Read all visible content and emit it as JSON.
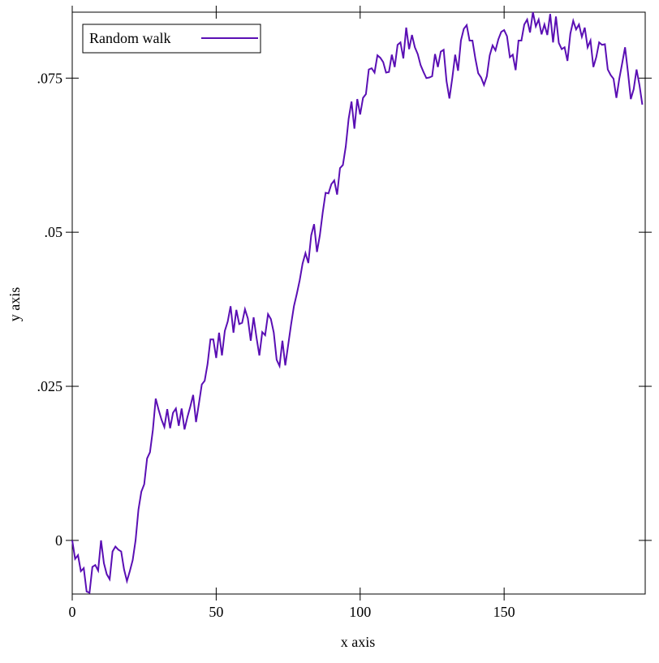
{
  "chart_data": {
    "type": "line",
    "xlabel": "x axis",
    "ylabel": "y axis",
    "legend": "top-left",
    "xlim": [
      0,
      199
    ],
    "xticks": [
      0,
      50,
      100,
      150
    ],
    "ylim": [
      -0.0087,
      0.0857
    ],
    "yticks": [
      0,
      {
        "value": 0.025,
        "label": ".025"
      },
      {
        "value": 0.05,
        "label": ".05"
      },
      {
        "value": 0.075,
        "label": ".075"
      }
    ],
    "x": [
      0,
      1,
      2,
      3,
      4,
      5,
      6,
      7,
      8,
      9,
      10,
      11,
      12,
      13,
      14,
      15,
      16,
      17,
      18,
      19,
      20,
      21,
      22,
      23,
      24,
      25,
      26,
      27,
      28,
      29,
      30,
      31,
      32,
      33,
      34,
      35,
      36,
      37,
      38,
      39,
      40,
      41,
      42,
      43,
      44,
      45,
      46,
      47,
      48,
      49,
      50,
      51,
      52,
      53,
      54,
      55,
      56,
      57,
      58,
      59,
      60,
      61,
      62,
      63,
      64,
      65,
      66,
      67,
      68,
      69,
      70,
      71,
      72,
      73,
      74,
      75,
      76,
      77,
      78,
      79,
      80,
      81,
      82,
      83,
      84,
      85,
      86,
      87,
      88,
      89,
      90,
      91,
      92,
      93,
      94,
      95,
      96,
      97,
      98,
      99,
      100,
      101,
      102,
      103,
      104,
      105,
      106,
      107,
      108,
      109,
      110,
      111,
      112,
      113,
      114,
      115,
      116,
      117,
      118,
      119,
      120,
      121,
      122,
      123,
      124,
      125,
      126,
      127,
      128,
      129,
      130,
      131,
      132,
      133,
      134,
      135,
      136,
      137,
      138,
      139,
      140,
      141,
      142,
      143,
      144,
      145,
      146,
      147,
      148,
      149,
      150,
      151,
      152,
      153,
      154,
      155,
      156,
      157,
      158,
      159,
      160,
      161,
      162,
      163,
      164,
      165,
      166,
      167,
      168,
      169,
      170,
      171,
      172,
      173,
      174,
      175,
      176,
      177,
      178,
      179,
      180,
      181,
      182,
      183,
      184,
      185,
      186,
      187,
      188,
      189,
      190,
      191,
      192,
      193,
      194,
      195,
      196,
      197,
      198
    ],
    "series": [
      {
        "name": "Random walk",
        "color": "#5a0fb4",
        "values": [
          0,
          -0.003,
          -0.0024,
          -0.005,
          -0.0045,
          -0.0083,
          -0.0085,
          -0.0043,
          -0.004,
          -0.0049,
          0,
          -0.0037,
          -0.0055,
          -0.0063,
          -0.0018,
          -0.001,
          -0.0015,
          -0.0018,
          -0.0047,
          -0.0066,
          -0.005,
          -0.0032,
          0,
          0.005,
          0.0079,
          0.0091,
          0.0133,
          0.0143,
          0.0179,
          0.023,
          0.0212,
          0.0196,
          0.0184,
          0.0213,
          0.0182,
          0.0207,
          0.0214,
          0.0186,
          0.0214,
          0.018,
          0.02,
          0.0217,
          0.0236,
          0.0192,
          0.0222,
          0.0253,
          0.0259,
          0.0286,
          0.0326,
          0.0326,
          0.0296,
          0.0337,
          0.03,
          0.034,
          0.0355,
          0.038,
          0.0337,
          0.0374,
          0.0351,
          0.0353,
          0.0375,
          0.036,
          0.0324,
          0.0362,
          0.0329,
          0.03,
          0.0338,
          0.0333,
          0.0367,
          0.0359,
          0.0337,
          0.0293,
          0.0283,
          0.0324,
          0.0284,
          0.0317,
          0.035,
          0.038,
          0.04,
          0.0422,
          0.0449,
          0.0466,
          0.045,
          0.0495,
          0.0513,
          0.0468,
          0.0495,
          0.0532,
          0.0564,
          0.0563,
          0.0578,
          0.0584,
          0.0561,
          0.0604,
          0.0609,
          0.0639,
          0.0684,
          0.0712,
          0.0668,
          0.0716,
          0.0691,
          0.0718,
          0.0724,
          0.0764,
          0.0766,
          0.0759,
          0.0787,
          0.0783,
          0.0776,
          0.0759,
          0.076,
          0.0788,
          0.0768,
          0.0804,
          0.0808,
          0.0782,
          0.0832,
          0.0797,
          0.082,
          0.08,
          0.0789,
          0.0771,
          0.076,
          0.075,
          0.0751,
          0.0753,
          0.0789,
          0.0768,
          0.0793,
          0.0796,
          0.0745,
          0.0717,
          0.075,
          0.0788,
          0.0762,
          0.0811,
          0.083,
          0.0836,
          0.0811,
          0.0811,
          0.0782,
          0.0758,
          0.0751,
          0.0739,
          0.0753,
          0.0787,
          0.0803,
          0.0795,
          0.0813,
          0.0825,
          0.0828,
          0.0818,
          0.0784,
          0.0788,
          0.0763,
          0.0811,
          0.0811,
          0.0837,
          0.0845,
          0.0824,
          0.0857,
          0.0834,
          0.0845,
          0.0821,
          0.0837,
          0.082,
          0.0854,
          0.0808,
          0.085,
          0.0807,
          0.0797,
          0.08,
          0.0778,
          0.0822,
          0.0843,
          0.0829,
          0.0837,
          0.0817,
          0.0832,
          0.08,
          0.0811,
          0.0768,
          0.0784,
          0.0808,
          0.0804,
          0.0805,
          0.0764,
          0.0755,
          0.0749,
          0.0718,
          0.0749,
          0.0774,
          0.08,
          0.076,
          0.0716,
          0.0732,
          0.0764,
          0.0739,
          0.0707
        ]
      }
    ]
  }
}
